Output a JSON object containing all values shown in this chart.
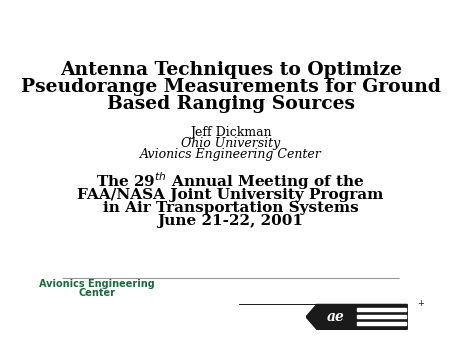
{
  "bg_color": "#ffffff",
  "title_line1": "Antenna Techniques to Optimize",
  "title_line2": "Pseudorange Measurements for Ground",
  "title_line3": "Based Ranging Sources",
  "author": "Jeff Dickman",
  "affil1": "Ohio University",
  "affil2": "Avionics Engineering Center",
  "conf_line1": "The 29$^{th}$ Annual Meeting of the",
  "conf_line2": "FAA/NASA Joint University Program",
  "conf_line3": "in Air Transportation Systems",
  "conf_line4": "June 21-22, 2001",
  "footer_text_line1": "Avionics Engineering",
  "footer_text_line2": "Center",
  "footer_color": "#1a6b3c",
  "title_color": "#000000",
  "conf_color": "#000000",
  "author_color": "#000000",
  "line_color": "#999999",
  "title_fontsize": 13.5,
  "author_fontsize": 9,
  "conf_fontsize": 11,
  "footer_fontsize": 7
}
